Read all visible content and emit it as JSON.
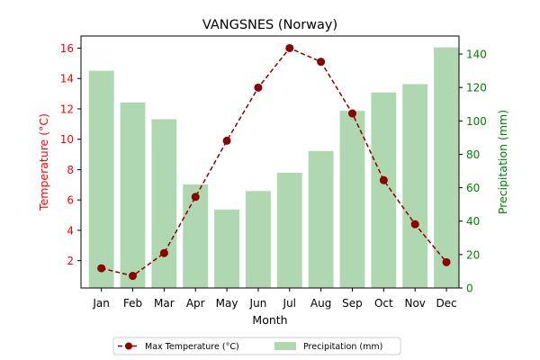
{
  "chart_data": {
    "type": "bar+line",
    "title": "VANGSNES (Norway)",
    "xlabel": "Month",
    "categories": [
      "Jan",
      "Feb",
      "Mar",
      "Apr",
      "May",
      "Jun",
      "Jul",
      "Aug",
      "Sep",
      "Oct",
      "Nov",
      "Dec"
    ],
    "left_axis": {
      "label": "Temperature (°C)",
      "color": "#ff0000",
      "ticks": [
        2,
        4,
        6,
        8,
        10,
        12,
        14,
        16
      ],
      "ylim": [
        0.2,
        16.8
      ]
    },
    "right_axis": {
      "label": "Precipitation (mm)",
      "color": "#008000",
      "ticks": [
        0,
        20,
        40,
        60,
        80,
        100,
        120,
        140
      ],
      "ylim": [
        0,
        150.8
      ]
    },
    "series": [
      {
        "name": "Max Temperature (°C)",
        "kind": "line",
        "axis": "left",
        "color": "#8b0000",
        "line_style": "dashed",
        "marker": "circle",
        "values": [
          1.5,
          1.0,
          2.5,
          6.2,
          9.9,
          13.4,
          16.0,
          15.1,
          11.7,
          7.3,
          4.4,
          1.9
        ]
      },
      {
        "name": "Precipitation (mm)",
        "kind": "bar",
        "axis": "right",
        "color": "#b0d8b0",
        "values": [
          130,
          111,
          101,
          62,
          47,
          58,
          69,
          82,
          106,
          117,
          122,
          144
        ]
      }
    ],
    "legend_position": "bottom-center"
  }
}
